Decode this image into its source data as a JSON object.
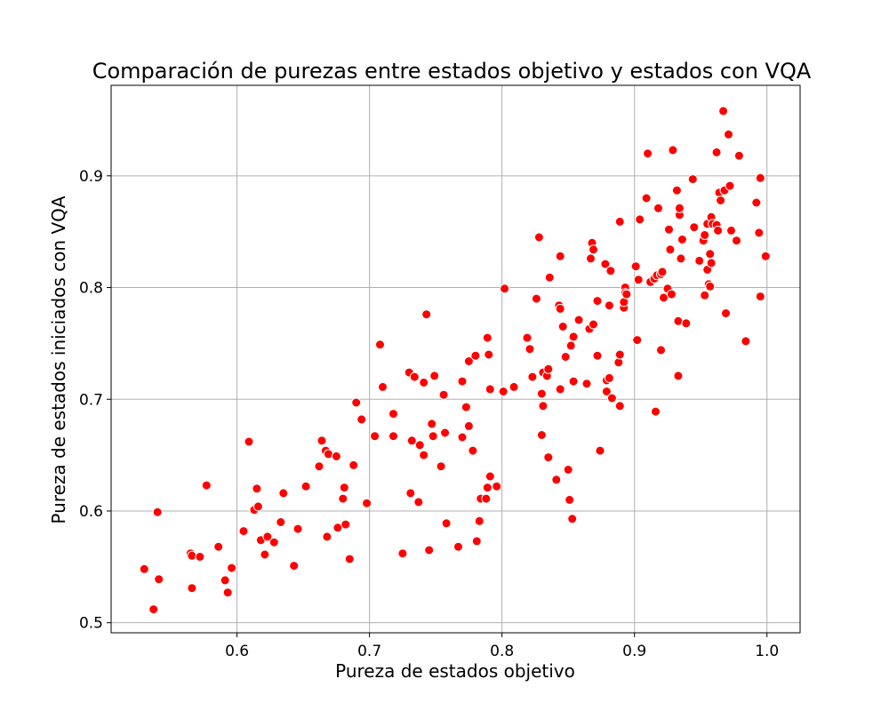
{
  "chart_data": {
    "type": "scatter",
    "title": "Comparación de purezas entre estados objetivo y estados con VQA",
    "xlabel": "Pureza de estados objetivo",
    "ylabel": "Pureza de estados iniciados con VQA",
    "xlim": [
      0.505,
      1.025
    ],
    "ylim": [
      0.491,
      0.981
    ],
    "x_ticks": [
      0.6,
      0.7,
      0.8,
      0.9,
      1.0
    ],
    "x_tick_labels": [
      "0.6",
      "0.7",
      "0.8",
      "0.9",
      "1.0"
    ],
    "y_ticks": [
      0.5,
      0.6,
      0.7,
      0.8,
      0.9
    ],
    "y_tick_labels": [
      "0.5",
      "0.6",
      "0.7",
      "0.8",
      "0.9"
    ],
    "grid": true,
    "marker_color": "#ff0000",
    "points": [
      [
        0.53,
        0.548
      ],
      [
        0.537,
        0.512
      ],
      [
        0.54,
        0.599
      ],
      [
        0.541,
        0.539
      ],
      [
        0.565,
        0.562
      ],
      [
        0.566,
        0.56
      ],
      [
        0.566,
        0.531
      ],
      [
        0.572,
        0.559
      ],
      [
        0.577,
        0.623
      ],
      [
        0.586,
        0.568
      ],
      [
        0.591,
        0.538
      ],
      [
        0.593,
        0.527
      ],
      [
        0.596,
        0.549
      ],
      [
        0.605,
        0.582
      ],
      [
        0.609,
        0.662
      ],
      [
        0.613,
        0.601
      ],
      [
        0.615,
        0.62
      ],
      [
        0.616,
        0.604
      ],
      [
        0.618,
        0.574
      ],
      [
        0.621,
        0.561
      ],
      [
        0.623,
        0.577
      ],
      [
        0.628,
        0.572
      ],
      [
        0.633,
        0.59
      ],
      [
        0.635,
        0.616
      ],
      [
        0.643,
        0.551
      ],
      [
        0.646,
        0.584
      ],
      [
        0.652,
        0.622
      ],
      [
        0.662,
        0.64
      ],
      [
        0.664,
        0.663
      ],
      [
        0.667,
        0.654
      ],
      [
        0.668,
        0.577
      ],
      [
        0.669,
        0.651
      ],
      [
        0.675,
        0.649
      ],
      [
        0.676,
        0.585
      ],
      [
        0.68,
        0.611
      ],
      [
        0.681,
        0.621
      ],
      [
        0.682,
        0.588
      ],
      [
        0.685,
        0.557
      ],
      [
        0.688,
        0.641
      ],
      [
        0.69,
        0.697
      ],
      [
        0.694,
        0.682
      ],
      [
        0.698,
        0.607
      ],
      [
        0.704,
        0.667
      ],
      [
        0.708,
        0.749
      ],
      [
        0.71,
        0.711
      ],
      [
        0.718,
        0.687
      ],
      [
        0.718,
        0.667
      ],
      [
        0.725,
        0.562
      ],
      [
        0.73,
        0.724
      ],
      [
        0.731,
        0.616
      ],
      [
        0.732,
        0.663
      ],
      [
        0.734,
        0.72
      ],
      [
        0.737,
        0.608
      ],
      [
        0.738,
        0.659
      ],
      [
        0.741,
        0.65
      ],
      [
        0.741,
        0.715
      ],
      [
        0.743,
        0.776
      ],
      [
        0.745,
        0.565
      ],
      [
        0.747,
        0.678
      ],
      [
        0.748,
        0.667
      ],
      [
        0.749,
        0.721
      ],
      [
        0.754,
        0.64
      ],
      [
        0.756,
        0.704
      ],
      [
        0.757,
        0.67
      ],
      [
        0.758,
        0.589
      ],
      [
        0.767,
        0.568
      ],
      [
        0.77,
        0.716
      ],
      [
        0.77,
        0.666
      ],
      [
        0.773,
        0.693
      ],
      [
        0.775,
        0.734
      ],
      [
        0.775,
        0.676
      ],
      [
        0.778,
        0.654
      ],
      [
        0.78,
        0.739
      ],
      [
        0.781,
        0.573
      ],
      [
        0.783,
        0.591
      ],
      [
        0.784,
        0.611
      ],
      [
        0.788,
        0.611
      ],
      [
        0.789,
        0.621
      ],
      [
        0.789,
        0.755
      ],
      [
        0.79,
        0.74
      ],
      [
        0.791,
        0.631
      ],
      [
        0.791,
        0.709
      ],
      [
        0.796,
        0.622
      ],
      [
        0.801,
        0.707
      ],
      [
        0.802,
        0.799
      ],
      [
        0.809,
        0.711
      ],
      [
        0.819,
        0.755
      ],
      [
        0.821,
        0.745
      ],
      [
        0.823,
        0.72
      ],
      [
        0.826,
        0.79
      ],
      [
        0.828,
        0.845
      ],
      [
        0.83,
        0.705
      ],
      [
        0.83,
        0.668
      ],
      [
        0.831,
        0.694
      ],
      [
        0.831,
        0.724
      ],
      [
        0.834,
        0.721
      ],
      [
        0.835,
        0.727
      ],
      [
        0.835,
        0.648
      ],
      [
        0.836,
        0.809
      ],
      [
        0.841,
        0.628
      ],
      [
        0.843,
        0.784
      ],
      [
        0.844,
        0.828
      ],
      [
        0.844,
        0.781
      ],
      [
        0.844,
        0.709
      ],
      [
        0.846,
        0.765
      ],
      [
        0.848,
        0.738
      ],
      [
        0.85,
        0.637
      ],
      [
        0.851,
        0.61
      ],
      [
        0.852,
        0.748
      ],
      [
        0.853,
        0.593
      ],
      [
        0.854,
        0.756
      ],
      [
        0.854,
        0.716
      ],
      [
        0.858,
        0.771
      ],
      [
        0.864,
        0.714
      ],
      [
        0.866,
        0.763
      ],
      [
        0.867,
        0.826
      ],
      [
        0.868,
        0.84
      ],
      [
        0.869,
        0.767
      ],
      [
        0.869,
        0.834
      ],
      [
        0.872,
        0.788
      ],
      [
        0.872,
        0.739
      ],
      [
        0.874,
        0.654
      ],
      [
        0.878,
        0.821
      ],
      [
        0.879,
        0.717
      ],
      [
        0.879,
        0.707
      ],
      [
        0.881,
        0.784
      ],
      [
        0.881,
        0.719
      ],
      [
        0.882,
        0.815
      ],
      [
        0.883,
        0.701
      ],
      [
        0.888,
        0.733
      ],
      [
        0.889,
        0.859
      ],
      [
        0.889,
        0.74
      ],
      [
        0.889,
        0.694
      ],
      [
        0.892,
        0.782
      ],
      [
        0.892,
        0.787
      ],
      [
        0.893,
        0.8
      ],
      [
        0.893,
        0.795
      ],
      [
        0.894,
        0.794
      ],
      [
        0.901,
        0.819
      ],
      [
        0.902,
        0.753
      ],
      [
        0.903,
        0.807
      ],
      [
        0.904,
        0.861
      ],
      [
        0.909,
        0.88
      ],
      [
        0.91,
        0.92
      ],
      [
        0.912,
        0.805
      ],
      [
        0.915,
        0.808
      ],
      [
        0.916,
        0.689
      ],
      [
        0.917,
        0.811
      ],
      [
        0.918,
        0.871
      ],
      [
        0.92,
        0.744
      ],
      [
        0.92,
        0.812
      ],
      [
        0.921,
        0.814
      ],
      [
        0.922,
        0.791
      ],
      [
        0.925,
        0.799
      ],
      [
        0.926,
        0.852
      ],
      [
        0.927,
        0.834
      ],
      [
        0.928,
        0.794
      ],
      [
        0.929,
        0.923
      ],
      [
        0.932,
        0.887
      ],
      [
        0.933,
        0.721
      ],
      [
        0.933,
        0.77
      ],
      [
        0.934,
        0.865
      ],
      [
        0.934,
        0.871
      ],
      [
        0.935,
        0.826
      ],
      [
        0.936,
        0.843
      ],
      [
        0.939,
        0.768
      ],
      [
        0.944,
        0.897
      ],
      [
        0.945,
        0.854
      ],
      [
        0.949,
        0.824
      ],
      [
        0.952,
        0.842
      ],
      [
        0.953,
        0.793
      ],
      [
        0.953,
        0.847
      ],
      [
        0.955,
        0.816
      ],
      [
        0.955,
        0.857
      ],
      [
        0.956,
        0.803
      ],
      [
        0.957,
        0.83
      ],
      [
        0.957,
        0.801
      ],
      [
        0.958,
        0.863
      ],
      [
        0.958,
        0.822
      ],
      [
        0.959,
        0.857
      ],
      [
        0.962,
        0.921
      ],
      [
        0.962,
        0.856
      ],
      [
        0.963,
        0.851
      ],
      [
        0.964,
        0.885
      ],
      [
        0.965,
        0.878
      ],
      [
        0.967,
        0.958
      ],
      [
        0.968,
        0.887
      ],
      [
        0.969,
        0.777
      ],
      [
        0.971,
        0.937
      ],
      [
        0.972,
        0.891
      ],
      [
        0.973,
        0.851
      ],
      [
        0.977,
        0.842
      ],
      [
        0.979,
        0.918
      ],
      [
        0.984,
        0.752
      ],
      [
        0.992,
        0.876
      ],
      [
        0.994,
        0.849
      ],
      [
        0.995,
        0.898
      ],
      [
        0.995,
        0.792
      ],
      [
        0.999,
        0.828
      ]
    ]
  }
}
